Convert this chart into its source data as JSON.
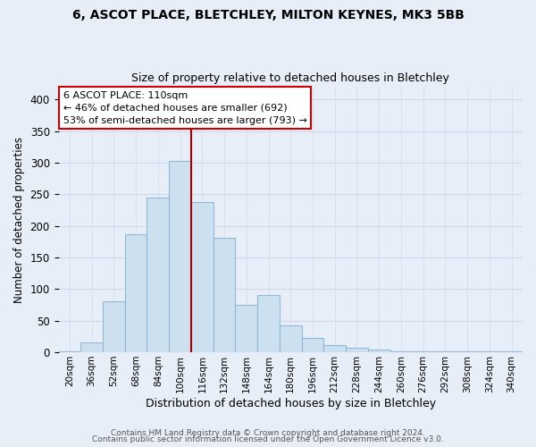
{
  "title1": "6, ASCOT PLACE, BLETCHLEY, MILTON KEYNES, MK3 5BB",
  "title2": "Size of property relative to detached houses in Bletchley",
  "xlabel": "Distribution of detached houses by size in Bletchley",
  "ylabel": "Number of detached properties",
  "bar_labels": [
    "20sqm",
    "36sqm",
    "52sqm",
    "68sqm",
    "84sqm",
    "100sqm",
    "116sqm",
    "132sqm",
    "148sqm",
    "164sqm",
    "180sqm",
    "196sqm",
    "212sqm",
    "228sqm",
    "244sqm",
    "260sqm",
    "276sqm",
    "292sqm",
    "308sqm",
    "324sqm",
    "340sqm"
  ],
  "bar_values": [
    2,
    15,
    80,
    187,
    245,
    302,
    238,
    181,
    75,
    90,
    42,
    22,
    12,
    7,
    4,
    2,
    1,
    1,
    1,
    1,
    1
  ],
  "bar_color": "#cce0f0",
  "bar_edge_color": "#90b8d8",
  "vline_color": "#aa0000",
  "annotation_title": "6 ASCOT PLACE: 110sqm",
  "annotation_line1": "← 46% of detached houses are smaller (692)",
  "annotation_line2": "53% of semi-detached houses are larger (793) →",
  "annotation_box_color": "#ffffff",
  "annotation_box_edge": "#cc0000",
  "ylim": [
    0,
    420
  ],
  "yticks": [
    0,
    50,
    100,
    150,
    200,
    250,
    300,
    350,
    400
  ],
  "footer1": "Contains HM Land Registry data © Crown copyright and database right 2024.",
  "footer2": "Contains public sector information licensed under the Open Government Licence v3.0.",
  "bg_color": "#e8eef8",
  "grid_color": "#d0daea"
}
